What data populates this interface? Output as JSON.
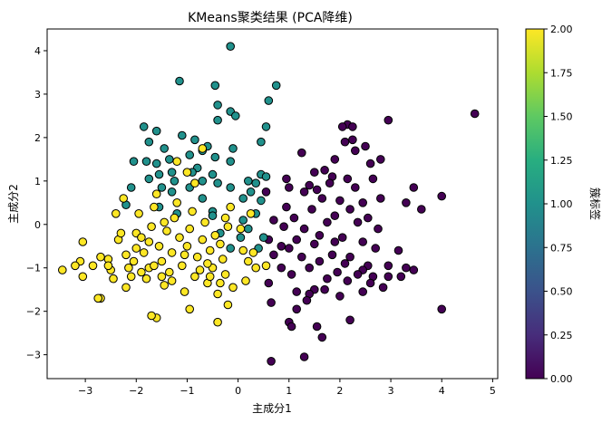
{
  "chart_data": {
    "type": "scatter",
    "title": "KMeans聚类结果 (PCA降维)",
    "xlabel": "主成分1",
    "ylabel": "主成分2",
    "xlim": [
      -3.75,
      5.1
    ],
    "ylim": [
      -3.55,
      4.5
    ],
    "xticks": [
      -3,
      -2,
      -1,
      0,
      1,
      2,
      3,
      4,
      5
    ],
    "yticks": [
      -3,
      -2,
      -1,
      0,
      1,
      2,
      3,
      4
    ],
    "grid": false,
    "colormap": "viridis",
    "colorbar": {
      "label": "簇标签",
      "range": [
        0,
        2
      ],
      "ticks": [
        0.0,
        0.25,
        0.5,
        0.75,
        1.0,
        1.25,
        1.5,
        1.75,
        2.0
      ],
      "tick_labels": [
        "0.00",
        "0.25",
        "0.50",
        "0.75",
        "1.00",
        "1.25",
        "1.50",
        "1.75",
        "2.00"
      ]
    },
    "cluster_colors": [
      "#440154",
      "#21918c",
      "#fde725"
    ],
    "marker_edge_color": "#000000",
    "points": [
      [
        4.65,
        2.55,
        0
      ],
      [
        2.95,
        2.4,
        0
      ],
      [
        2.15,
        2.3,
        0
      ],
      [
        2.25,
        2.25,
        0
      ],
      [
        2.05,
        2.25,
        0
      ],
      [
        2.25,
        1.95,
        0
      ],
      [
        2.1,
        1.9,
        0
      ],
      [
        2.5,
        1.8,
        0
      ],
      [
        2.3,
        1.7,
        0
      ],
      [
        1.25,
        1.65,
        0
      ],
      [
        1.9,
        1.5,
        0
      ],
      [
        2.8,
        1.5,
        0
      ],
      [
        2.6,
        1.4,
        0
      ],
      [
        1.7,
        1.25,
        0
      ],
      [
        1.5,
        1.2,
        0
      ],
      [
        1.85,
        1.1,
        0
      ],
      [
        2.15,
        1.05,
        0
      ],
      [
        2.65,
        1.05,
        0
      ],
      [
        0.95,
        1.05,
        0
      ],
      [
        1.0,
        0.85,
        0
      ],
      [
        1.4,
        0.9,
        0
      ],
      [
        1.55,
        0.8,
        0
      ],
      [
        1.8,
        0.95,
        0
      ],
      [
        2.3,
        0.85,
        0
      ],
      [
        3.45,
        0.85,
        0
      ],
      [
        4.0,
        0.65,
        0
      ],
      [
        1.3,
        0.75,
        0
      ],
      [
        0.55,
        0.75,
        0
      ],
      [
        1.65,
        0.6,
        0
      ],
      [
        2.0,
        0.55,
        0
      ],
      [
        2.45,
        0.5,
        0
      ],
      [
        2.8,
        0.6,
        0
      ],
      [
        3.3,
        0.5,
        0
      ],
      [
        3.6,
        0.35,
        0
      ],
      [
        2.2,
        0.35,
        0
      ],
      [
        0.95,
        0.4,
        0
      ],
      [
        1.45,
        0.35,
        0
      ],
      [
        1.9,
        0.2,
        0
      ],
      [
        1.1,
        0.15,
        0
      ],
      [
        2.55,
        0.15,
        0
      ],
      [
        0.7,
        0.1,
        0
      ],
      [
        1.75,
        0.05,
        0
      ],
      [
        2.35,
        0.05,
        0
      ],
      [
        0.9,
        -0.05,
        0
      ],
      [
        1.3,
        -0.1,
        0
      ],
      [
        2.75,
        -0.1,
        0
      ],
      [
        1.6,
        -0.25,
        0
      ],
      [
        2.05,
        -0.3,
        0
      ],
      [
        0.6,
        -0.35,
        0
      ],
      [
        1.15,
        -0.35,
        0
      ],
      [
        1.9,
        -0.4,
        0
      ],
      [
        2.45,
        -0.4,
        0
      ],
      [
        0.85,
        -0.5,
        0
      ],
      [
        1.0,
        -0.55,
        0
      ],
      [
        1.5,
        -0.45,
        0
      ],
      [
        2.7,
        -0.55,
        0
      ],
      [
        3.15,
        -0.6,
        0
      ],
      [
        0.7,
        -0.7,
        0
      ],
      [
        1.25,
        -0.75,
        0
      ],
      [
        1.85,
        -0.7,
        0
      ],
      [
        2.2,
        -0.75,
        0
      ],
      [
        1.6,
        -0.85,
        0
      ],
      [
        2.1,
        -0.9,
        0
      ],
      [
        2.55,
        -0.95,
        0
      ],
      [
        2.95,
        -0.95,
        0
      ],
      [
        3.3,
        -1.0,
        0
      ],
      [
        0.85,
        -1.0,
        0
      ],
      [
        1.4,
        -1.0,
        0
      ],
      [
        2.45,
        -1.05,
        0
      ],
      [
        3.45,
        -1.05,
        0
      ],
      [
        1.95,
        -1.1,
        0
      ],
      [
        2.35,
        -1.15,
        0
      ],
      [
        2.65,
        -1.2,
        0
      ],
      [
        2.95,
        -1.2,
        0
      ],
      [
        3.2,
        -1.2,
        0
      ],
      [
        1.05,
        -1.15,
        0
      ],
      [
        1.75,
        -1.25,
        0
      ],
      [
        2.15,
        -1.3,
        0
      ],
      [
        2.6,
        -1.35,
        0
      ],
      [
        0.6,
        -1.35,
        0
      ],
      [
        1.5,
        -1.5,
        0
      ],
      [
        2.85,
        -1.45,
        0
      ],
      [
        1.15,
        -1.55,
        0
      ],
      [
        1.7,
        -1.5,
        0
      ],
      [
        1.4,
        -1.6,
        0
      ],
      [
        2.45,
        -1.55,
        0
      ],
      [
        2.0,
        -1.65,
        0
      ],
      [
        1.35,
        -1.75,
        0
      ],
      [
        0.65,
        -1.8,
        0
      ],
      [
        4.0,
        -1.95,
        0
      ],
      [
        1.15,
        -1.95,
        0
      ],
      [
        2.2,
        -2.2,
        0
      ],
      [
        1.0,
        -2.25,
        0
      ],
      [
        1.05,
        -2.35,
        0
      ],
      [
        1.55,
        -2.35,
        0
      ],
      [
        1.65,
        -2.6,
        0
      ],
      [
        1.3,
        -3.05,
        0
      ],
      [
        0.65,
        -3.15,
        0
      ],
      [
        -0.15,
        4.1,
        1
      ],
      [
        -0.45,
        3.2,
        1
      ],
      [
        0.75,
        3.2,
        1
      ],
      [
        -1.15,
        3.3,
        1
      ],
      [
        0.6,
        2.85,
        1
      ],
      [
        -0.4,
        2.75,
        1
      ],
      [
        -0.15,
        2.6,
        1
      ],
      [
        -0.05,
        2.5,
        1
      ],
      [
        -0.4,
        2.4,
        1
      ],
      [
        -1.85,
        2.25,
        1
      ],
      [
        0.55,
        2.25,
        1
      ],
      [
        -1.6,
        2.15,
        1
      ],
      [
        0.45,
        1.9,
        1
      ],
      [
        -1.1,
        2.05,
        1
      ],
      [
        -0.85,
        1.95,
        1
      ],
      [
        -1.75,
        1.9,
        1
      ],
      [
        -0.6,
        1.8,
        1
      ],
      [
        -0.1,
        1.75,
        1
      ],
      [
        -1.45,
        1.75,
        1
      ],
      [
        -0.7,
        1.7,
        1
      ],
      [
        -0.95,
        1.6,
        1
      ],
      [
        -0.45,
        1.55,
        1
      ],
      [
        -1.35,
        1.5,
        1
      ],
      [
        -0.15,
        1.45,
        1
      ],
      [
        -2.05,
        1.45,
        1
      ],
      [
        -1.8,
        1.45,
        1
      ],
      [
        -1.6,
        1.4,
        1
      ],
      [
        -0.8,
        1.3,
        1
      ],
      [
        -1.55,
        1.15,
        1
      ],
      [
        -1.3,
        1.2,
        1
      ],
      [
        -0.9,
        1.2,
        1
      ],
      [
        -0.5,
        1.15,
        1
      ],
      [
        0.45,
        1.15,
        1
      ],
      [
        0.2,
        1.0,
        1
      ],
      [
        0.55,
        1.1,
        1
      ],
      [
        -1.75,
        1.05,
        1
      ],
      [
        -1.25,
        1.0,
        1
      ],
      [
        -0.7,
        1.0,
        1
      ],
      [
        -0.4,
        0.95,
        1
      ],
      [
        0.35,
        0.95,
        1
      ],
      [
        -2.1,
        0.85,
        1
      ],
      [
        -1.5,
        0.85,
        1
      ],
      [
        -0.95,
        0.85,
        1
      ],
      [
        -0.15,
        0.85,
        1
      ],
      [
        0.25,
        0.75,
        1
      ],
      [
        -1.3,
        0.75,
        1
      ],
      [
        -0.7,
        0.6,
        1
      ],
      [
        0.1,
        0.6,
        1
      ],
      [
        0.45,
        0.55,
        1
      ],
      [
        -2.2,
        0.45,
        1
      ],
      [
        -1.55,
        0.4,
        1
      ],
      [
        -0.5,
        0.3,
        1
      ],
      [
        -1.2,
        0.25,
        1
      ],
      [
        0.35,
        0.25,
        1
      ],
      [
        -0.5,
        0.2,
        1
      ],
      [
        0.1,
        0.1,
        1
      ],
      [
        0.2,
        -0.1,
        1
      ],
      [
        -0.35,
        -0.2,
        1
      ],
      [
        0.05,
        -0.3,
        1
      ],
      [
        0.5,
        -0.3,
        1
      ],
      [
        0.4,
        -0.55,
        1
      ],
      [
        -0.15,
        -0.55,
        1
      ],
      [
        -3.45,
        -1.05,
        2
      ],
      [
        -3.1,
        -0.85,
        2
      ],
      [
        -3.2,
        -0.95,
        2
      ],
      [
        -3.05,
        -0.4,
        2
      ],
      [
        -2.85,
        -0.95,
        2
      ],
      [
        -2.7,
        -0.75,
        2
      ],
      [
        -2.55,
        -0.8,
        2
      ],
      [
        -2.5,
        -1.05,
        2
      ],
      [
        -2.45,
        -1.25,
        2
      ],
      [
        -2.7,
        -1.7,
        2
      ],
      [
        -2.75,
        -1.7,
        2
      ],
      [
        -3.05,
        -1.2,
        2
      ],
      [
        -2.35,
        -0.35,
        2
      ],
      [
        -2.4,
        0.25,
        2
      ],
      [
        -2.25,
        0.6,
        2
      ],
      [
        -2.2,
        -0.7,
        2
      ],
      [
        -2.15,
        -1.0,
        2
      ],
      [
        -2.05,
        -0.85,
        2
      ],
      [
        -2.0,
        -0.55,
        2
      ],
      [
        -2.1,
        -1.2,
        2
      ],
      [
        -2.2,
        -1.45,
        2
      ],
      [
        -2.0,
        -0.2,
        2
      ],
      [
        -1.95,
        0.25,
        2
      ],
      [
        -1.9,
        -0.3,
        2
      ],
      [
        -1.85,
        -0.65,
        2
      ],
      [
        -1.8,
        -1.25,
        2
      ],
      [
        -1.75,
        -1.0,
        2
      ],
      [
        -1.7,
        -0.05,
        2
      ],
      [
        -1.65,
        0.4,
        2
      ],
      [
        -1.6,
        0.7,
        2
      ],
      [
        -1.55,
        -0.5,
        2
      ],
      [
        -1.5,
        -0.85,
        2
      ],
      [
        -1.45,
        -1.4,
        2
      ],
      [
        -1.4,
        -0.15,
        2
      ],
      [
        -1.35,
        -1.1,
        2
      ],
      [
        -1.3,
        -0.65,
        2
      ],
      [
        -1.25,
        0.15,
        2
      ],
      [
        -1.2,
        0.5,
        2
      ],
      [
        -1.15,
        -0.3,
        2
      ],
      [
        -1.1,
        -0.95,
        2
      ],
      [
        -1.05,
        -1.55,
        2
      ],
      [
        -1.0,
        -0.5,
        2
      ],
      [
        -0.95,
        -0.1,
        2
      ],
      [
        -0.9,
        0.3,
        2
      ],
      [
        -0.85,
        -1.2,
        2
      ],
      [
        -0.8,
        -0.75,
        2
      ],
      [
        -0.75,
        -1.05,
        2
      ],
      [
        -0.7,
        -0.35,
        2
      ],
      [
        -0.65,
        0.05,
        2
      ],
      [
        -0.6,
        -1.35,
        2
      ],
      [
        -0.55,
        -0.6,
        2
      ],
      [
        -0.5,
        -1.0,
        2
      ],
      [
        -0.45,
        -0.25,
        2
      ],
      [
        -0.4,
        -1.6,
        2
      ],
      [
        -0.35,
        -0.45,
        2
      ],
      [
        -0.3,
        -0.8,
        2
      ],
      [
        -0.25,
        -1.15,
        2
      ],
      [
        -0.2,
        -0.05,
        2
      ],
      [
        -0.15,
        0.4,
        2
      ],
      [
        -0.1,
        -1.45,
        2
      ],
      [
        -1.2,
        1.45,
        2
      ],
      [
        -1.0,
        1.2,
        2
      ],
      [
        -0.85,
        0.95,
        2
      ],
      [
        -0.7,
        1.75,
        2
      ],
      [
        -1.6,
        -2.15,
        2
      ],
      [
        -1.7,
        -2.1,
        2
      ],
      [
        -0.95,
        -1.95,
        2
      ],
      [
        -0.4,
        -2.25,
        2
      ],
      [
        -0.2,
        -1.85,
        2
      ],
      [
        0.15,
        -1.3,
        2
      ],
      [
        0.2,
        -0.85,
        2
      ],
      [
        0.3,
        -0.65,
        2
      ],
      [
        0.05,
        -0.1,
        2
      ],
      [
        0.25,
        0.25,
        2
      ],
      [
        0.35,
        -1.0,
        2
      ],
      [
        -1.9,
        -1.1,
        2
      ],
      [
        -2.55,
        -0.95,
        2
      ],
      [
        -1.5,
        -1.2,
        2
      ],
      [
        -1.3,
        -1.3,
        2
      ],
      [
        -0.55,
        -1.2,
        2
      ],
      [
        -1.75,
        -0.4,
        2
      ],
      [
        -2.3,
        -0.2,
        2
      ],
      [
        -1.65,
        -0.95,
        2
      ],
      [
        -1.05,
        -0.7,
        2
      ],
      [
        -0.6,
        -0.9,
        2
      ],
      [
        0.1,
        -0.6,
        2
      ],
      [
        -0.25,
        0.15,
        2
      ],
      [
        -1.45,
        0.05,
        2
      ],
      [
        -0.35,
        -1.35,
        2
      ],
      [
        0.55,
        -0.95,
        2
      ]
    ]
  }
}
